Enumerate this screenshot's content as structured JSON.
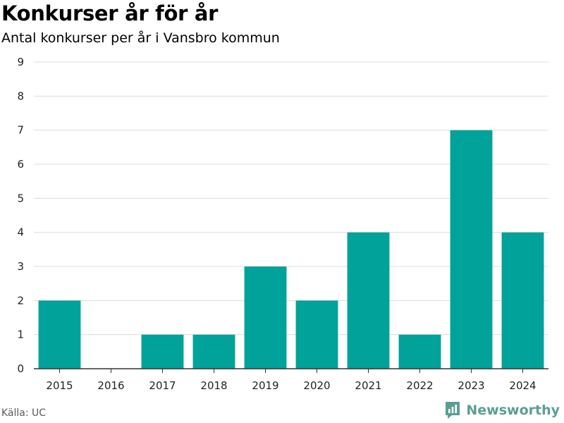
{
  "title": "Konkurser år för år",
  "subtitle": "Antal konkurser per år i Vansbro kommun",
  "source": "Källa: UC",
  "brand": {
    "name": "Newsworthy",
    "icon": "newsworthy-logo-icon",
    "color": "#5b9e96"
  },
  "colors": {
    "bar": "#00a29a",
    "grid": "#dcdcdc",
    "axis": "#333333",
    "text": "#222222"
  },
  "chart_data": {
    "type": "bar",
    "title": "Konkurser år för år",
    "subtitle": "Antal konkurser per år i Vansbro kommun",
    "categories": [
      "2015",
      "2016",
      "2017",
      "2018",
      "2019",
      "2020",
      "2021",
      "2022",
      "2023",
      "2024"
    ],
    "values": [
      2,
      0,
      1,
      1,
      3,
      2,
      4,
      1,
      7,
      4
    ],
    "ylim": [
      0,
      9
    ],
    "yticks": [
      0,
      1,
      2,
      3,
      4,
      5,
      6,
      7,
      8,
      9
    ],
    "grid": true,
    "legend": "none"
  }
}
